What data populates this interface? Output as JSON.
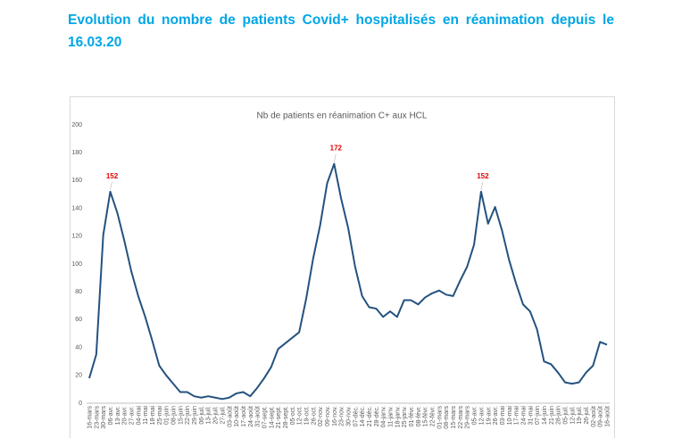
{
  "header": {
    "title": "Evolution du nombre de patients Covid+ hospitalisés en réanimation depuis le 16.03.20"
  },
  "chart_data": {
    "type": "line",
    "title": "Nb de patients en réanimation C+ aux HCL",
    "categories": [
      "16-mars",
      "23-mars",
      "30-mars",
      "06-avr.",
      "13-avr.",
      "20-avr.",
      "27-avr.",
      "04-mai",
      "11-mai",
      "18-mai",
      "25-mai",
      "01-juin",
      "08-juin",
      "15-juin",
      "22-juin",
      "29-juin",
      "06-juil.",
      "13-juil.",
      "20-juil.",
      "27-juil.",
      "03-août",
      "10-août",
      "17-août",
      "24-août",
      "31-août",
      "07-sept.",
      "14-sept.",
      "21-sept.",
      "28-sept.",
      "05-oct.",
      "12-oct.",
      "19-oct.",
      "26-oct.",
      "02-nov.",
      "09-nov.",
      "16-nov.",
      "23-nov.",
      "30-nov.",
      "07-déc.",
      "14-déc.",
      "21-déc.",
      "28-déc.",
      "04-janv.",
      "11-janv.",
      "18-janv.",
      "25-janv.",
      "01-févr.",
      "08-févr.",
      "15-févr.",
      "22-févr.",
      "01-mars",
      "08-mars",
      "15-mars",
      "22-mars",
      "29-mars",
      "05-avr.",
      "12-avr.",
      "19-avr.",
      "26-avr.",
      "03-mai",
      "10-mai",
      "17-mai",
      "24-mai",
      "31-mai",
      "07-juin",
      "14-juin",
      "21-juin",
      "28-juin",
      "05-juil.",
      "12-juil.",
      "19-juil.",
      "26-juil.",
      "02-août",
      "09-août",
      "16-août"
    ],
    "series": [
      {
        "color": "#24527f",
        "values": [
          18,
          35,
          121,
          152,
          137,
          117,
          95,
          77,
          62,
          45,
          27,
          20,
          14,
          8,
          8,
          5,
          4,
          5,
          4,
          3,
          4,
          7,
          8,
          5,
          11,
          18,
          26,
          39,
          43,
          47,
          51,
          75,
          104,
          128,
          158,
          172,
          147,
          126,
          98,
          77,
          69,
          68,
          62,
          66,
          62,
          74,
          74,
          71,
          76,
          79,
          81,
          78,
          77,
          88,
          98,
          114,
          152,
          129,
          141,
          124,
          103,
          86,
          71,
          66,
          53,
          30,
          28,
          22,
          15,
          14,
          15,
          22,
          27,
          44,
          42
        ]
      }
    ],
    "labeled_points": [
      3,
      35,
      56
    ],
    "label_color": "#e00000",
    "ylim": [
      0,
      200
    ],
    "yticks": [
      0,
      20,
      40,
      60,
      80,
      100,
      120,
      140,
      160,
      180,
      200
    ],
    "grid": false
  }
}
